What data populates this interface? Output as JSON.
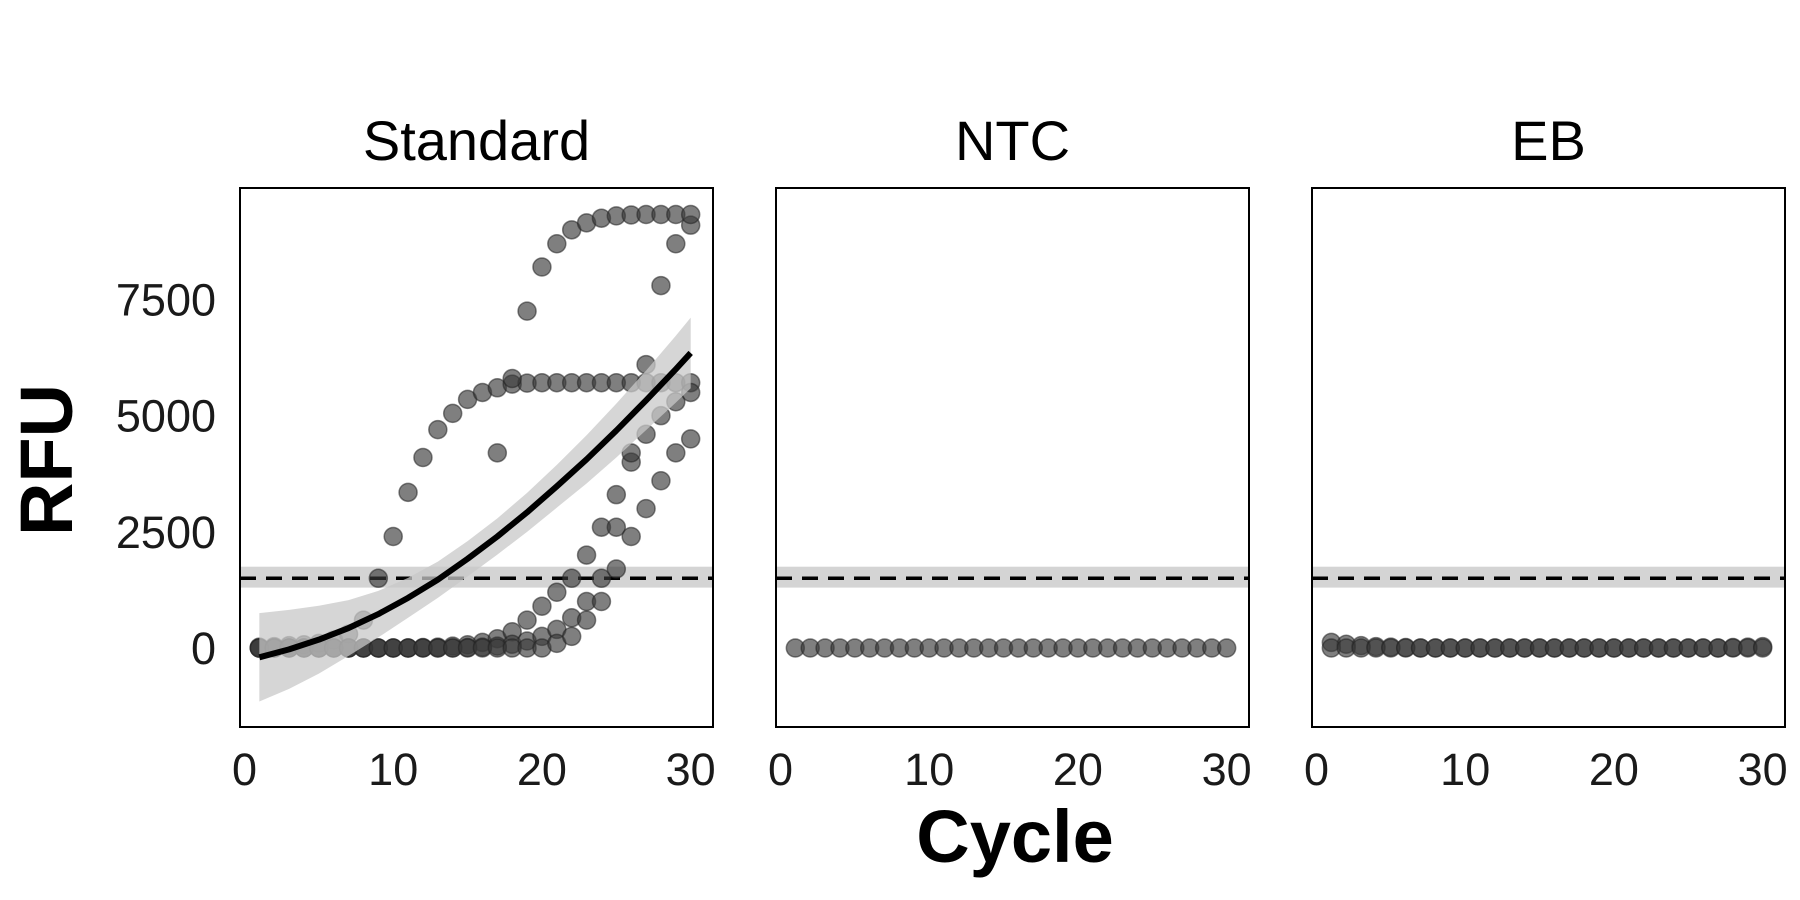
{
  "chart_data": {
    "type": "scatter",
    "ylabel": "RFU",
    "xlabel": "Cycle",
    "xlim": [
      -0.3,
      31.5
    ],
    "ylim": [
      -1700,
      9900
    ],
    "xticks": [
      0,
      10,
      20,
      30
    ],
    "xtick_labels": [
      "0",
      "10",
      "20",
      "30"
    ],
    "yticks": [
      0,
      2500,
      5000,
      7500
    ],
    "ytick_labels": [
      "0",
      "2500",
      "5000",
      "7500"
    ],
    "threshold": {
      "value": 1500,
      "band": [
        1300,
        1750
      ]
    },
    "grid": false,
    "colors": {
      "points": "#3a3a3a",
      "fit": "#000000",
      "ribbon": "#c8c8c8",
      "threshold": "#000000"
    },
    "facets": [
      {
        "title": "Standard",
        "series": [
          {
            "x": [
              1,
              2,
              3,
              4,
              5,
              6,
              7,
              8,
              9,
              10,
              11,
              12,
              13,
              14,
              15,
              16,
              17,
              18,
              19,
              20,
              21,
              22,
              23,
              24,
              25,
              26,
              27,
              28,
              29,
              30
            ],
            "y": [
              20,
              30,
              50,
              70,
              100,
              170,
              300,
              600,
              1500,
              2400,
              3350,
              4100,
              4700,
              5050,
              5350,
              5500,
              5600,
              5680,
              5700,
              5710,
              5710,
              5710,
              5710,
              5710,
              5710,
              5710,
              5710,
              5710,
              5710,
              5710
            ]
          },
          {
            "x": [
              1,
              2,
              3,
              4,
              5,
              6,
              7,
              8,
              9,
              10,
              11,
              12,
              13,
              14,
              15,
              16,
              17,
              18,
              19,
              20,
              21,
              22,
              23,
              24,
              25,
              26,
              27,
              28,
              29,
              30
            ],
            "y": [
              0,
              0,
              0,
              0,
              0,
              0,
              0,
              0,
              0,
              0,
              0,
              10,
              20,
              40,
              70,
              120,
              200,
              350,
              600,
              900,
              1200,
              1500,
              2000,
              2600,
              3300,
              4000,
              4600,
              5000,
              5300,
              5500
            ]
          },
          {
            "x": [
              1,
              2,
              3,
              4,
              5,
              6,
              7,
              8,
              9,
              10,
              11,
              12,
              13,
              14,
              15,
              16,
              17,
              18,
              19,
              20,
              21,
              22,
              23,
              24,
              25,
              26,
              27,
              28,
              29,
              30
            ],
            "y": [
              0,
              0,
              0,
              0,
              0,
              0,
              0,
              0,
              0,
              0,
              0,
              0,
              0,
              0,
              10,
              20,
              40,
              80,
              150,
              250,
              400,
              650,
              1000,
              1500,
              2600,
              4200,
              6100,
              7800,
              8700,
              9100
            ]
          },
          {
            "x": [
              17,
              18,
              19,
              20,
              21,
              22,
              23,
              24,
              25,
              26,
              27,
              28,
              29,
              30
            ],
            "y": [
              4200,
              5800,
              7250,
              8200,
              8700,
              9000,
              9150,
              9250,
              9300,
              9320,
              9330,
              9330,
              9330,
              9330
            ]
          },
          {
            "x": [
              1,
              2,
              3,
              4,
              5,
              6,
              7,
              8,
              9,
              10,
              11,
              12,
              13,
              14,
              15,
              16,
              17,
              18,
              19,
              20,
              21,
              22,
              23,
              24,
              25,
              26,
              27,
              28,
              29,
              30
            ],
            "y": [
              0,
              0,
              0,
              0,
              0,
              0,
              0,
              0,
              0,
              0,
              0,
              0,
              0,
              0,
              0,
              0,
              0,
              0,
              0,
              0,
              100,
              250,
              600,
              1000,
              1700,
              2400,
              3000,
              3600,
              4200,
              4500
            ]
          }
        ],
        "fit": {
          "x": [
            1,
            3,
            5,
            7,
            9,
            11,
            13,
            15,
            17,
            19,
            21,
            23,
            25,
            27,
            29,
            30
          ],
          "y": [
            -200,
            -30,
            180,
            430,
            730,
            1080,
            1470,
            1920,
            2400,
            2920,
            3480,
            4060,
            4680,
            5330,
            6000,
            6350
          ],
          "se": [
            950,
            850,
            730,
            600,
            500,
            430,
            390,
            380,
            390,
            420,
            460,
            520,
            580,
            640,
            720,
            760
          ]
        },
        "show_threshold_band": true
      },
      {
        "title": "NTC",
        "series": [
          {
            "x": [
              1,
              2,
              3,
              4,
              5,
              6,
              7,
              8,
              9,
              10,
              11,
              12,
              13,
              14,
              15,
              16,
              17,
              18,
              19,
              20,
              21,
              22,
              23,
              24,
              25,
              26,
              27,
              28,
              29,
              30
            ],
            "y": [
              0,
              0,
              0,
              0,
              0,
              0,
              0,
              0,
              0,
              0,
              0,
              0,
              0,
              0,
              0,
              0,
              0,
              0,
              0,
              0,
              0,
              0,
              0,
              0,
              0,
              0,
              0,
              0,
              0,
              0
            ]
          }
        ],
        "show_threshold_band": true
      },
      {
        "title": "EB",
        "series": [
          {
            "x": [
              1,
              2,
              3,
              4,
              5,
              6,
              7,
              8,
              9,
              10,
              11,
              12,
              13,
              14,
              15,
              16,
              17,
              18,
              19,
              20,
              21,
              22,
              23,
              24,
              25,
              26,
              27,
              28,
              29,
              30
            ],
            "y": [
              120,
              80,
              50,
              30,
              20,
              10,
              0,
              0,
              0,
              0,
              0,
              0,
              0,
              0,
              0,
              0,
              0,
              0,
              0,
              0,
              0,
              0,
              0,
              0,
              0,
              0,
              0,
              10,
              20,
              30
            ]
          },
          {
            "x": [
              1,
              2,
              3,
              4,
              5,
              6,
              7,
              8,
              9,
              10,
              11,
              12,
              13,
              14,
              15,
              16,
              17,
              18,
              19,
              20,
              21,
              22,
              23,
              24,
              25,
              26,
              27,
              28,
              29,
              30
            ],
            "y": [
              0,
              0,
              0,
              0,
              0,
              0,
              0,
              0,
              0,
              0,
              0,
              0,
              0,
              0,
              0,
              0,
              0,
              0,
              0,
              0,
              0,
              0,
              0,
              0,
              0,
              0,
              0,
              0,
              0,
              0
            ]
          }
        ],
        "show_threshold_band": true
      }
    ]
  }
}
